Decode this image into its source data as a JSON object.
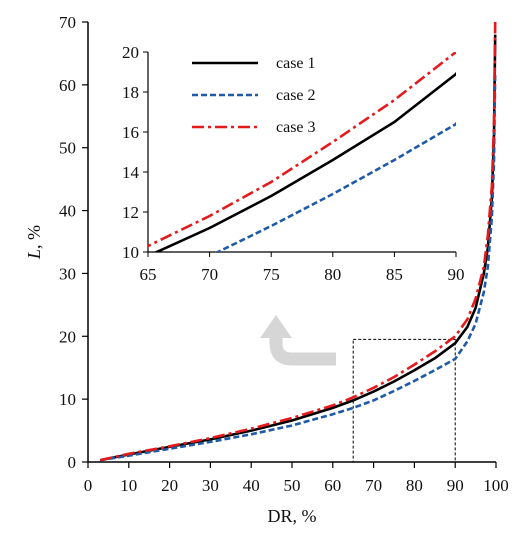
{
  "chart_data": {
    "type": "line",
    "xlabel": "DR, %",
    "ylabel_italic": "L",
    "ylabel_rest": ", %",
    "xlim": [
      0,
      100
    ],
    "ylim": [
      0,
      70
    ],
    "xticks": [
      "0",
      "10",
      "20",
      "30",
      "40",
      "50",
      "60",
      "70",
      "80",
      "90",
      "100"
    ],
    "yticks": [
      "0",
      "10",
      "20",
      "30",
      "40",
      "50",
      "60",
      "70"
    ],
    "series": [
      {
        "name": "case 1",
        "color": "#000000",
        "dash": "solid",
        "x": [
          3,
          10,
          20,
          30,
          40,
          50,
          60,
          65,
          70,
          75,
          80,
          85,
          90,
          93,
          95,
          97,
          98,
          99,
          99.5,
          99.8
        ],
        "y": [
          0.3,
          1.2,
          2.4,
          3.6,
          5.0,
          6.6,
          8.6,
          9.8,
          11.2,
          12.8,
          14.6,
          16.5,
          18.9,
          21.5,
          24.5,
          30,
          34,
          42,
          52,
          68
        ]
      },
      {
        "name": "case 2",
        "color": "#1f5aa6",
        "dash": "dashed",
        "x": [
          3,
          10,
          20,
          30,
          40,
          50,
          60,
          65,
          70,
          75,
          80,
          85,
          90,
          93,
          95,
          97,
          98,
          99,
          99.5,
          99.8
        ],
        "y": [
          0.3,
          1.0,
          2.1,
          3.2,
          4.4,
          5.8,
          7.6,
          8.6,
          9.8,
          11.3,
          12.9,
          14.6,
          16.4,
          19.2,
          22,
          27,
          31,
          39,
          48,
          62
        ]
      },
      {
        "name": "case 3",
        "color": "#e41a1c",
        "dash": "dashdot",
        "x": [
          3,
          10,
          20,
          30,
          40,
          50,
          60,
          65,
          70,
          75,
          80,
          85,
          90,
          93,
          95,
          97,
          98,
          99,
          99.5,
          99.8
        ],
        "y": [
          0.3,
          1.3,
          2.5,
          3.8,
          5.3,
          7.0,
          9.0,
          10.3,
          11.8,
          13.5,
          15.5,
          17.6,
          20.0,
          22.7,
          26,
          31,
          36,
          44,
          54,
          70
        ]
      }
    ],
    "inset": {
      "xlim": [
        65,
        90
      ],
      "ylim": [
        10,
        20
      ],
      "xticks": [
        "65",
        "70",
        "75",
        "80",
        "85",
        "90"
      ],
      "yticks": [
        "10",
        "12",
        "14",
        "16",
        "18",
        "20"
      ]
    },
    "zoom_box": {
      "x": [
        65,
        90
      ],
      "y": [
        0,
        19.5
      ]
    },
    "grid": false,
    "legend_position": "inset top-left"
  }
}
